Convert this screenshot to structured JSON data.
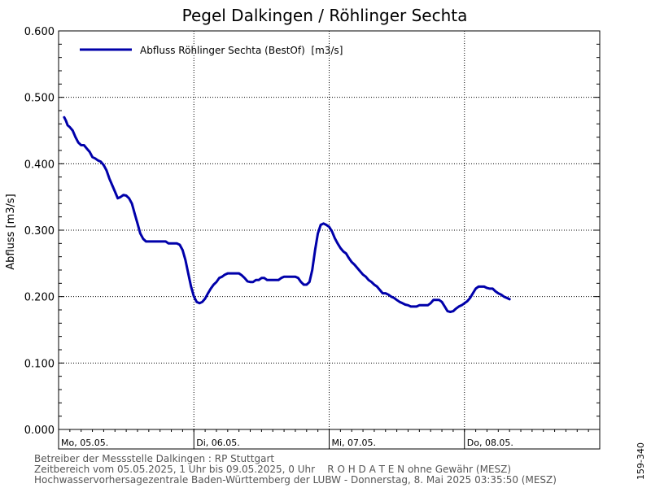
{
  "chart_data": {
    "type": "line",
    "title": "Pegel Dalkingen / Röhlinger Sechta",
    "ylabel": "Abfluss [m3/s]",
    "xlabel": "",
    "ylim": [
      0,
      0.6
    ],
    "yticks": [
      "0.000",
      "0.100",
      "0.200",
      "0.300",
      "0.400",
      "0.500",
      "0.600"
    ],
    "xlim_hours": [
      0,
      96
    ],
    "x_day_labels": [
      "Mo, 05.05.",
      "Di, 06.05.",
      "Mi, 07.05.",
      "Do, 08.05."
    ],
    "legend_position": "top-left",
    "grid": true,
    "series": [
      {
        "name": "Abfluss Röhlinger Sechta (BestOf)  [m3/s]",
        "color": "#0000aa",
        "x_unit": "hours since 05.05.2025 00:00",
        "points": [
          [
            1.0,
            0.47
          ],
          [
            1.3,
            0.465
          ],
          [
            1.6,
            0.458
          ],
          [
            2.0,
            0.455
          ],
          [
            2.5,
            0.45
          ],
          [
            3.0,
            0.44
          ],
          [
            3.5,
            0.432
          ],
          [
            4.0,
            0.428
          ],
          [
            4.5,
            0.428
          ],
          [
            5.0,
            0.423
          ],
          [
            5.5,
            0.418
          ],
          [
            6.0,
            0.41
          ],
          [
            6.5,
            0.408
          ],
          [
            7.0,
            0.405
          ],
          [
            7.5,
            0.403
          ],
          [
            8.0,
            0.398
          ],
          [
            8.5,
            0.39
          ],
          [
            9.0,
            0.378
          ],
          [
            9.5,
            0.368
          ],
          [
            10.0,
            0.358
          ],
          [
            10.5,
            0.348
          ],
          [
            11.0,
            0.35
          ],
          [
            11.5,
            0.353
          ],
          [
            12.0,
            0.352
          ],
          [
            12.5,
            0.348
          ],
          [
            13.0,
            0.34
          ],
          [
            13.5,
            0.325
          ],
          [
            14.0,
            0.31
          ],
          [
            14.5,
            0.295
          ],
          [
            15.0,
            0.287
          ],
          [
            15.5,
            0.283
          ],
          [
            16.0,
            0.283
          ],
          [
            17.0,
            0.283
          ],
          [
            18.0,
            0.283
          ],
          [
            19.0,
            0.283
          ],
          [
            19.5,
            0.28
          ],
          [
            20.0,
            0.28
          ],
          [
            21.0,
            0.28
          ],
          [
            21.5,
            0.278
          ],
          [
            22.0,
            0.27
          ],
          [
            22.5,
            0.255
          ],
          [
            23.0,
            0.235
          ],
          [
            23.5,
            0.215
          ],
          [
            24.0,
            0.2
          ],
          [
            24.5,
            0.192
          ],
          [
            25.0,
            0.19
          ],
          [
            25.5,
            0.192
          ],
          [
            26.0,
            0.197
          ],
          [
            26.5,
            0.205
          ],
          [
            27.0,
            0.212
          ],
          [
            27.5,
            0.218
          ],
          [
            28.0,
            0.222
          ],
          [
            28.5,
            0.228
          ],
          [
            29.0,
            0.23
          ],
          [
            29.5,
            0.233
          ],
          [
            30.0,
            0.235
          ],
          [
            31.0,
            0.235
          ],
          [
            32.0,
            0.235
          ],
          [
            32.5,
            0.232
          ],
          [
            33.0,
            0.228
          ],
          [
            33.5,
            0.223
          ],
          [
            34.0,
            0.222
          ],
          [
            34.5,
            0.222
          ],
          [
            35.0,
            0.225
          ],
          [
            35.5,
            0.225
          ],
          [
            36.0,
            0.228
          ],
          [
            36.5,
            0.228
          ],
          [
            37.0,
            0.225
          ],
          [
            38.0,
            0.225
          ],
          [
            39.0,
            0.225
          ],
          [
            39.5,
            0.228
          ],
          [
            40.0,
            0.23
          ],
          [
            41.0,
            0.23
          ],
          [
            42.0,
            0.23
          ],
          [
            42.5,
            0.228
          ],
          [
            43.0,
            0.222
          ],
          [
            43.5,
            0.218
          ],
          [
            44.0,
            0.218
          ],
          [
            44.5,
            0.222
          ],
          [
            45.0,
            0.24
          ],
          [
            45.5,
            0.27
          ],
          [
            46.0,
            0.295
          ],
          [
            46.5,
            0.308
          ],
          [
            47.0,
            0.31
          ],
          [
            47.5,
            0.308
          ],
          [
            48.0,
            0.305
          ],
          [
            48.5,
            0.298
          ],
          [
            49.0,
            0.288
          ],
          [
            49.5,
            0.28
          ],
          [
            50.0,
            0.273
          ],
          [
            50.5,
            0.268
          ],
          [
            51.0,
            0.265
          ],
          [
            51.5,
            0.258
          ],
          [
            52.0,
            0.252
          ],
          [
            52.5,
            0.248
          ],
          [
            53.0,
            0.243
          ],
          [
            53.5,
            0.238
          ],
          [
            54.0,
            0.233
          ],
          [
            54.5,
            0.23
          ],
          [
            55.0,
            0.225
          ],
          [
            55.5,
            0.222
          ],
          [
            56.0,
            0.218
          ],
          [
            56.5,
            0.215
          ],
          [
            57.0,
            0.21
          ],
          [
            57.5,
            0.205
          ],
          [
            58.0,
            0.205
          ],
          [
            58.5,
            0.203
          ],
          [
            59.0,
            0.2
          ],
          [
            59.5,
            0.198
          ],
          [
            60.0,
            0.195
          ],
          [
            60.5,
            0.192
          ],
          [
            61.0,
            0.19
          ],
          [
            61.5,
            0.188
          ],
          [
            62.0,
            0.187
          ],
          [
            62.5,
            0.185
          ],
          [
            63.0,
            0.185
          ],
          [
            63.5,
            0.185
          ],
          [
            64.0,
            0.187
          ],
          [
            64.5,
            0.187
          ],
          [
            65.0,
            0.187
          ],
          [
            65.5,
            0.187
          ],
          [
            66.0,
            0.19
          ],
          [
            66.5,
            0.195
          ],
          [
            67.0,
            0.195
          ],
          [
            67.5,
            0.195
          ],
          [
            68.0,
            0.192
          ],
          [
            68.5,
            0.185
          ],
          [
            69.0,
            0.178
          ],
          [
            69.5,
            0.177
          ],
          [
            70.0,
            0.178
          ],
          [
            70.5,
            0.182
          ],
          [
            71.0,
            0.185
          ],
          [
            71.5,
            0.187
          ],
          [
            72.0,
            0.19
          ],
          [
            72.5,
            0.193
          ],
          [
            73.0,
            0.198
          ],
          [
            73.5,
            0.205
          ],
          [
            74.0,
            0.212
          ],
          [
            74.5,
            0.215
          ],
          [
            75.0,
            0.215
          ],
          [
            75.5,
            0.215
          ],
          [
            76.0,
            0.213
          ],
          [
            76.5,
            0.212
          ],
          [
            77.0,
            0.212
          ],
          [
            77.5,
            0.208
          ],
          [
            78.0,
            0.205
          ],
          [
            78.5,
            0.203
          ],
          [
            79.0,
            0.2
          ],
          [
            79.5,
            0.198
          ],
          [
            80.0,
            0.196
          ]
        ]
      }
    ]
  },
  "footer": {
    "line1": "Betreiber der Messstelle Dalkingen : RP Stuttgart",
    "line2": "Zeitbereich vom 05.05.2025, 1 Uhr bis 09.05.2025, 0 Uhr    R O H D A T E N ohne Gewähr (MESZ)",
    "line3": "Hochwasservorhersagezentrale Baden-Württemberg der LUBW - Donnerstag, 8. Mai 2025 03:35:50 (MESZ)"
  },
  "side_label": "159-340"
}
